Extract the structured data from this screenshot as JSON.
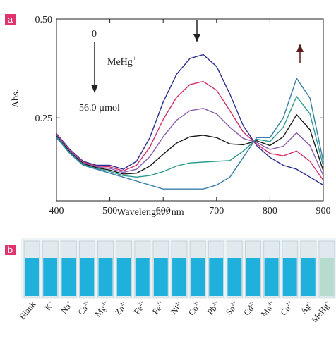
{
  "panel_labels": [
    "a",
    "b"
  ],
  "chart_data": {
    "type": "line",
    "x_label": "Wavelenght / nm",
    "y_label": "Abs.",
    "annotations": {
      "start": "0",
      "reagent": {
        "base": "MeHg",
        "sup": "+"
      },
      "end": "56.0 µmol"
    },
    "x": [
      400,
      425,
      450,
      475,
      500,
      525,
      550,
      575,
      600,
      625,
      650,
      675,
      700,
      725,
      750,
      775,
      800,
      825,
      850,
      875,
      900
    ],
    "series": [
      {
        "color": "#2b2f8f",
        "values": [
          0.21,
          0.17,
          0.14,
          0.13,
          0.13,
          0.12,
          0.14,
          0.2,
          0.29,
          0.36,
          0.4,
          0.41,
          0.38,
          0.31,
          0.23,
          0.18,
          0.15,
          0.13,
          0.12,
          0.1,
          0.08
        ]
      },
      {
        "color": "#d0306a",
        "values": [
          0.208,
          0.168,
          0.138,
          0.128,
          0.126,
          0.116,
          0.13,
          0.176,
          0.246,
          0.302,
          0.334,
          0.342,
          0.32,
          0.268,
          0.214,
          0.184,
          0.16,
          0.154,
          0.166,
          0.14,
          0.092
        ]
      },
      {
        "color": "#8a5bb0",
        "values": [
          0.206,
          0.166,
          0.136,
          0.126,
          0.122,
          0.112,
          0.12,
          0.152,
          0.202,
          0.244,
          0.268,
          0.274,
          0.26,
          0.226,
          0.198,
          0.188,
          0.17,
          0.178,
          0.212,
          0.18,
          0.104
        ]
      },
      {
        "color": "#1a1a1a",
        "values": [
          0.204,
          0.164,
          0.134,
          0.124,
          0.118,
          0.108,
          0.11,
          0.128,
          0.158,
          0.186,
          0.202,
          0.206,
          0.2,
          0.184,
          0.182,
          0.192,
          0.18,
          0.202,
          0.258,
          0.22,
          0.116
        ]
      },
      {
        "color": "#2a9c8c",
        "values": [
          0.202,
          0.162,
          0.132,
          0.122,
          0.114,
          0.104,
          0.1,
          0.104,
          0.114,
          0.128,
          0.136,
          0.138,
          0.14,
          0.142,
          0.166,
          0.196,
          0.19,
          0.226,
          0.304,
          0.26,
          0.128
        ]
      },
      {
        "color": "#3a7ea8",
        "values": [
          0.2,
          0.16,
          0.13,
          0.12,
          0.11,
          0.1,
          0.09,
          0.08,
          0.07,
          0.07,
          0.07,
          0.07,
          0.08,
          0.1,
          0.15,
          0.2,
          0.2,
          0.25,
          0.35,
          0.3,
          0.14
        ]
      }
    ],
    "xlim": [
      400,
      900
    ],
    "xticks": [
      400,
      500,
      600,
      700,
      800,
      900
    ],
    "ylim": [
      0.04,
      0.5
    ],
    "yticks": [
      {
        "value": 0.25,
        "label": "0.25"
      },
      {
        "value": 0.5,
        "label": "0.50"
      }
    ]
  },
  "vials": {
    "labels": [
      {
        "base": "Blank",
        "sup": ""
      },
      {
        "base": "K",
        "sup": "+"
      },
      {
        "base": "Na",
        "sup": "+"
      },
      {
        "base": "Ca",
        "sup": "2+"
      },
      {
        "base": "Mg",
        "sup": "2+"
      },
      {
        "base": "Zn",
        "sup": "2+"
      },
      {
        "base": "Fe",
        "sup": "2+"
      },
      {
        "base": "Fe",
        "sup": "3+"
      },
      {
        "base": "Ni",
        "sup": "2+"
      },
      {
        "base": "Co",
        "sup": "2+"
      },
      {
        "base": "Pb",
        "sup": "2+"
      },
      {
        "base": "Sn",
        "sup": "2+"
      },
      {
        "base": "Cd",
        "sup": "2+"
      },
      {
        "base": "Mn",
        "sup": "2+"
      },
      {
        "base": "Cu",
        "sup": "2+"
      },
      {
        "base": "Ag",
        "sup": "+"
      },
      {
        "base": "MeHg",
        "sup": "+"
      }
    ],
    "colors": [
      "#1fb0dc",
      "#1fb0dc",
      "#1fb0dc",
      "#1fb0dc",
      "#1fb0dc",
      "#1fb0dc",
      "#1fb0dc",
      "#1fb0dc",
      "#1fb0dc",
      "#1fb0dc",
      "#1fb0dc",
      "#1fb0dc",
      "#1fb0dc",
      "#1fb0dc",
      "#1fb0dc",
      "#1fb0dc",
      "#b5dccd"
    ]
  }
}
